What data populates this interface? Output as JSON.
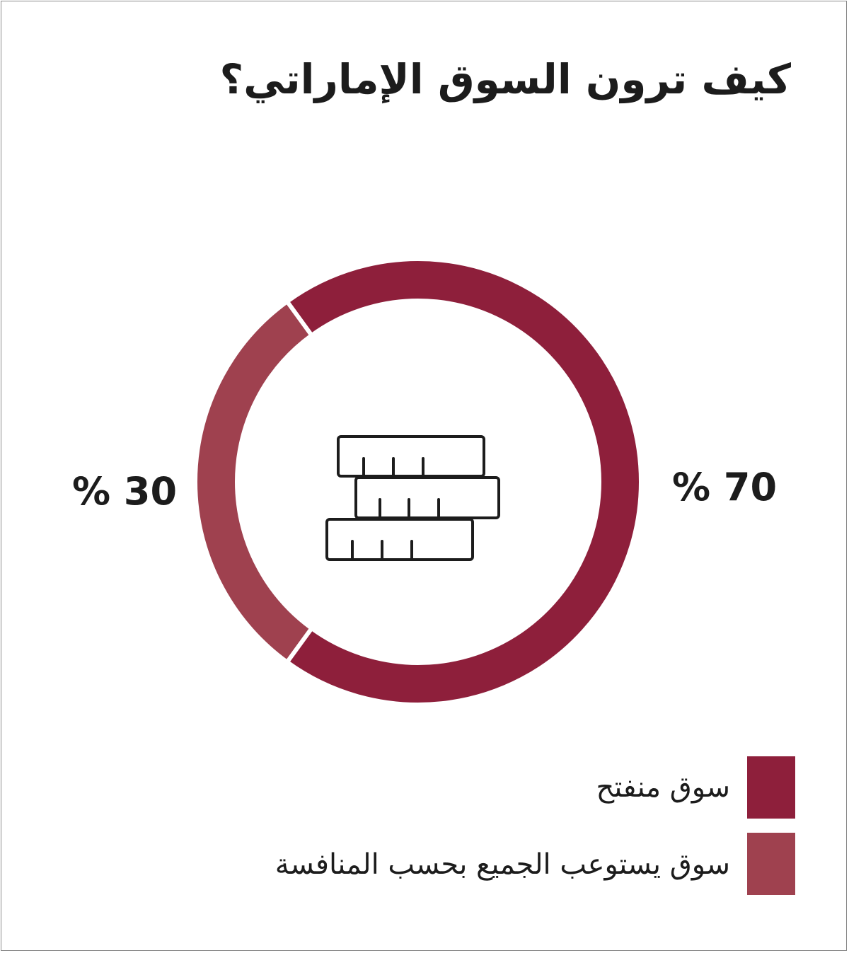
{
  "chart_data": {
    "type": "pie",
    "variant": "donut",
    "title": "كيف ترون السوق الإماراتي؟",
    "series": [
      {
        "name": "سوق منفتح",
        "value": 70,
        "label": "% 70",
        "color": "#8e1f3b"
      },
      {
        "name": "سوق يستوعب الجميع بحسب المنافسة",
        "value": 30,
        "label": "% 30",
        "color": "#9f414f"
      }
    ],
    "legend_position": "bottom-right",
    "center_icon": "stacked-bricks-icon"
  }
}
